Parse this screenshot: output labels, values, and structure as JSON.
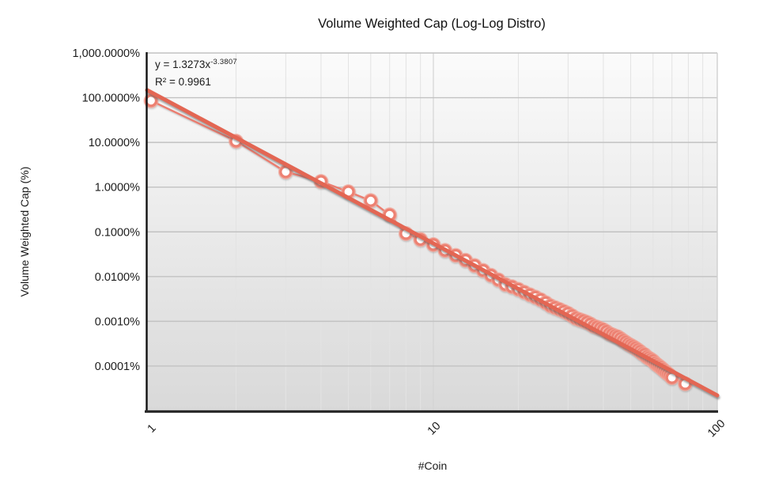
{
  "chart": {
    "title": "Volume Weighted Cap (Log-Log Distro)",
    "equation_base": "y = 1.3273x",
    "equation_exponent": "-3.3807",
    "r_squared_label": "R² = 0.9961",
    "y_axis_title": "Volume Weighted Cap (%)",
    "x_axis_title": "#Coin"
  },
  "chart_data": {
    "type": "scatter",
    "title": "Volume Weighted Cap (Log-Log Distro)",
    "xlabel": "#Coin",
    "ylabel": "Volume Weighted Cap (%)",
    "x_scale": "log",
    "y_scale": "log",
    "xlim": [
      1,
      100
    ],
    "ylim_pct": [
      1e-05,
      1000
    ],
    "grid": {
      "horizontal": "decade-lines",
      "vertical": "log-minor-lines",
      "legend": "none"
    },
    "x_ticks": [
      {
        "label": "1",
        "value": 1
      },
      {
        "label": "10",
        "value": 10
      },
      {
        "label": "100",
        "value": 100
      }
    ],
    "y_ticks": [
      {
        "label": "1,000.0000%",
        "value": 1000
      },
      {
        "label": "100.0000%",
        "value": 100
      },
      {
        "label": "10.0000%",
        "value": 10
      },
      {
        "label": "1.0000%",
        "value": 1
      },
      {
        "label": "0.1000%",
        "value": 0.1
      },
      {
        "label": "0.0100%",
        "value": 0.01
      },
      {
        "label": "0.0010%",
        "value": 0.001
      },
      {
        "label": "0.0001%",
        "value": 0.0001
      }
    ],
    "series": [
      {
        "name": "Volume Weighted Cap",
        "marker": "open-circle",
        "x": [
          1,
          2,
          3,
          4,
          5,
          6,
          7,
          8,
          9,
          10,
          11,
          12,
          13,
          14,
          15,
          16,
          17,
          18,
          19,
          20,
          21,
          22,
          23,
          24,
          25,
          26,
          27,
          28,
          29,
          30,
          31,
          32,
          33,
          34,
          35,
          36,
          37,
          38,
          39,
          40,
          41,
          42,
          43,
          44,
          45,
          46,
          47,
          48,
          49,
          50,
          51,
          52,
          53,
          54,
          55,
          56,
          57,
          58,
          59,
          60,
          61,
          62,
          63,
          64,
          65,
          66,
          67,
          68,
          69,
          70,
          78
        ],
        "y_pct": [
          86,
          10.7,
          2.2,
          1.34,
          0.79,
          0.5,
          0.24,
          0.0915,
          0.0678,
          0.0519,
          0.0385,
          0.0298,
          0.0232,
          0.0177,
          0.01375,
          0.01072,
          0.00845,
          0.00667,
          0.00593,
          0.0052,
          0.00449,
          0.00392,
          0.00347,
          0.00305,
          0.00261,
          0.00223,
          0.00202,
          0.00184,
          0.00166,
          0.00151,
          0.00133,
          0.00117,
          0.00109,
          0.00102,
          0.00095,
          0.00087,
          0.00078,
          0.00074,
          0.00069,
          0.00065,
          0.00059,
          0.00053,
          0.0005,
          0.00047,
          0.00045,
          0.00041,
          0.00037,
          0.00034,
          0.00031,
          0.00029,
          0.00027,
          0.00025,
          0.00023,
          0.00021,
          0.00019,
          0.00018,
          0.00016,
          0.00015,
          0.00014,
          0.00013,
          0.000116,
          0.000107,
          9.9e-05,
          9.2e-05,
          8.4e-05,
          7.7e-05,
          7.1e-05,
          6.6e-05,
          6.1e-05,
          5.5e-05,
          4e-05
        ]
      }
    ],
    "trendline": {
      "type": "power",
      "label": "y = 1.3273x^-3.3807",
      "coefficient": 1.3273,
      "coefficient_pct": 132.73,
      "exponent": -3.3807,
      "r2": 0.9961,
      "x_range": [
        1,
        100
      ]
    },
    "colors": {
      "series_line": "#eb7d6f",
      "marker_ring": "#ed8172",
      "marker_halo": "#f2a396",
      "marker_fill": "#ffffff",
      "trendline": "#e36653",
      "grid_major_h": "#c2c2c2",
      "grid_minor_v": "#e3e3e3",
      "grid_decade_v": "#d4d4d4",
      "plot_border": "#cfcfcf",
      "y_axis_line": "#111111",
      "x_axis_line": "#2b2b2b",
      "plot_bg_top": "#fbfbfb",
      "plot_bg_bottom": "#d9d9d9",
      "text": "#1c1c1c"
    }
  }
}
